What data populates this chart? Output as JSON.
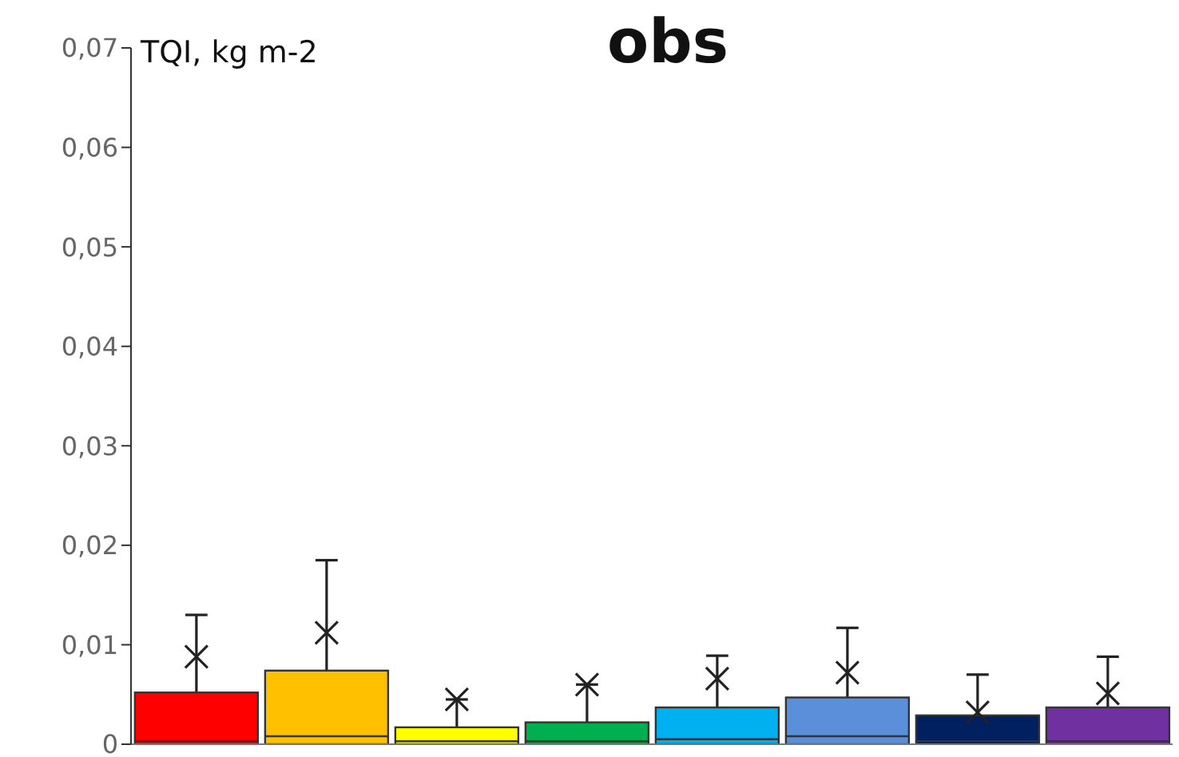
{
  "chart_data": {
    "type": "box",
    "title": "obs",
    "ylabel": "TQI, kg m-2",
    "categories": [
      null,
      null,
      null,
      null,
      null,
      null,
      null,
      null
    ],
    "colors": [
      "#ff0000",
      "#ffc000",
      "#ffff00",
      "#00b050",
      "#00b0f0",
      "#5b8fd9",
      "#002060",
      "#7030a0"
    ],
    "boxes": [
      {
        "low": 0,
        "q1": 0,
        "median": 0.0003,
        "q3": 0.0052,
        "high": 0.013,
        "mean": 0.0088
      },
      {
        "low": 0,
        "q1": 0,
        "median": 0.0008,
        "q3": 0.0074,
        "high": 0.0185,
        "mean": 0.0112
      },
      {
        "low": 0,
        "q1": 0,
        "median": 0.0003,
        "q3": 0.0017,
        "high": 0.0045,
        "mean": 0.0045
      },
      {
        "low": 0,
        "q1": 0,
        "median": 0.0003,
        "q3": 0.0022,
        "high": 0.006,
        "mean": 0.006
      },
      {
        "low": 0,
        "q1": 0,
        "median": 0.0005,
        "q3": 0.0037,
        "high": 0.0089,
        "mean": 0.0066
      },
      {
        "low": 0,
        "q1": 0,
        "median": 0.0008,
        "q3": 0.0047,
        "high": 0.0117,
        "mean": 0.0072
      },
      {
        "low": 0,
        "q1": 0,
        "median": 0.0003,
        "q3": 0.0029,
        "high": 0.007,
        "mean": 0.0032
      },
      {
        "low": 0,
        "q1": 0,
        "median": 0.0003,
        "q3": 0.0037,
        "high": 0.0088,
        "mean": 0.0051
      }
    ],
    "ylim": [
      0,
      0.07
    ],
    "yticks": [
      0,
      {
        "value": 0.01,
        "label": "0,01"
      },
      {
        "value": 0.02,
        "label": "0,02"
      },
      {
        "value": 0.03,
        "label": "0,03"
      },
      {
        "value": 0.04,
        "label": "0,04"
      },
      {
        "value": 0.05,
        "label": "0,05"
      },
      {
        "value": 0.06,
        "label": "0,06"
      },
      {
        "value": 0.07,
        "label": "0,07"
      }
    ]
  }
}
